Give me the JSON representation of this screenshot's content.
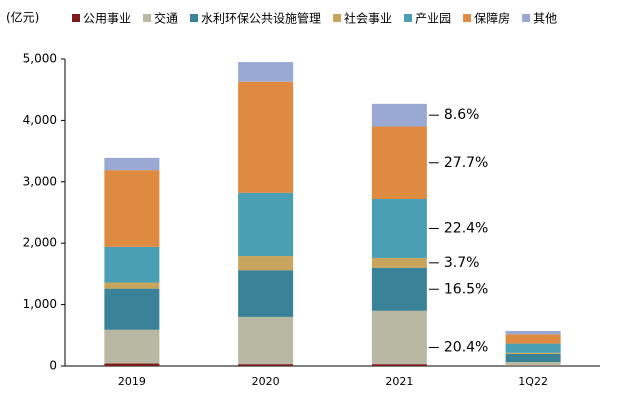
{
  "chart_data": {
    "type": "stacked_bar",
    "y_unit_label": "(亿元)",
    "categories": [
      "2019",
      "2020",
      "2021",
      "1Q22"
    ],
    "series": [
      {
        "name": "公用事业",
        "color": "#7b1a1a",
        "values": [
          40,
          30,
          30,
          5
        ]
      },
      {
        "name": "交通",
        "color": "#b9b8a3",
        "values": [
          550,
          770,
          870,
          60
        ]
      },
      {
        "name": "水利环保公共设施管理",
        "color": "#3a8297",
        "values": [
          670,
          760,
          700,
          130
        ]
      },
      {
        "name": "社会事业",
        "color": "#c9a45c",
        "values": [
          100,
          230,
          160,
          20
        ]
      },
      {
        "name": "产业园",
        "color": "#4a9fb5",
        "values": [
          580,
          1030,
          960,
          150
        ]
      },
      {
        "name": "保障房",
        "color": "#de8a41",
        "values": [
          1250,
          1810,
          1180,
          150
        ]
      },
      {
        "name": "其他",
        "color": "#99a9d3",
        "values": [
          200,
          320,
          370,
          55
        ]
      }
    ],
    "annotations": [
      "8.6%",
      "27.7%",
      "22.4%",
      "3.7%",
      "16.5%",
      "20.4%"
    ],
    "ylim": [
      0,
      5000
    ],
    "yticks": [
      0,
      {
        "value": 1000,
        "label": "1,000"
      },
      {
        "value": 2000,
        "label": "2,000"
      },
      {
        "value": 3000,
        "label": "3,000"
      },
      {
        "value": 4000,
        "label": "4,000"
      },
      {
        "value": 5000,
        "label": "5,000"
      }
    ]
  }
}
